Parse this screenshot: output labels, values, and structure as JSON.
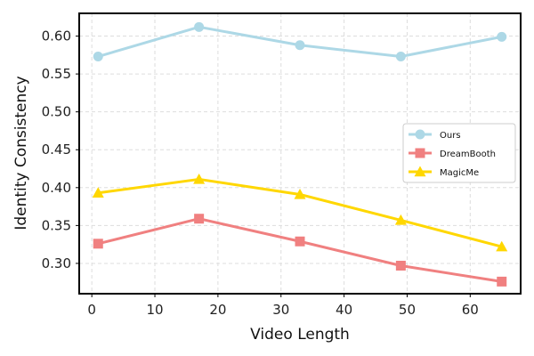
{
  "chart_data": {
    "type": "line",
    "title": "",
    "xlabel": "Video Length",
    "ylabel": "Identity Consistency",
    "xlim": [
      -2,
      68
    ],
    "ylim": [
      0.26,
      0.63
    ],
    "x": [
      1,
      17,
      33,
      49,
      65
    ],
    "xticks": [
      0,
      10,
      20,
      30,
      40,
      50,
      60
    ],
    "yticks": [
      0.3,
      0.35,
      0.4,
      0.45,
      0.5,
      0.55,
      0.6
    ],
    "grid": true,
    "legend_position": "center-right",
    "series": [
      {
        "name": "Ours",
        "values": [
          0.573,
          0.612,
          0.588,
          0.573,
          0.599
        ],
        "color": "#add8e6",
        "marker": "circle"
      },
      {
        "name": "DreamBooth",
        "values": [
          0.326,
          0.359,
          0.329,
          0.297,
          0.276
        ],
        "color": "#f08080",
        "marker": "square"
      },
      {
        "name": "MagicMe",
        "values": [
          0.393,
          0.411,
          0.391,
          0.357,
          0.322
        ],
        "color": "#ffd700",
        "marker": "triangle"
      }
    ]
  }
}
